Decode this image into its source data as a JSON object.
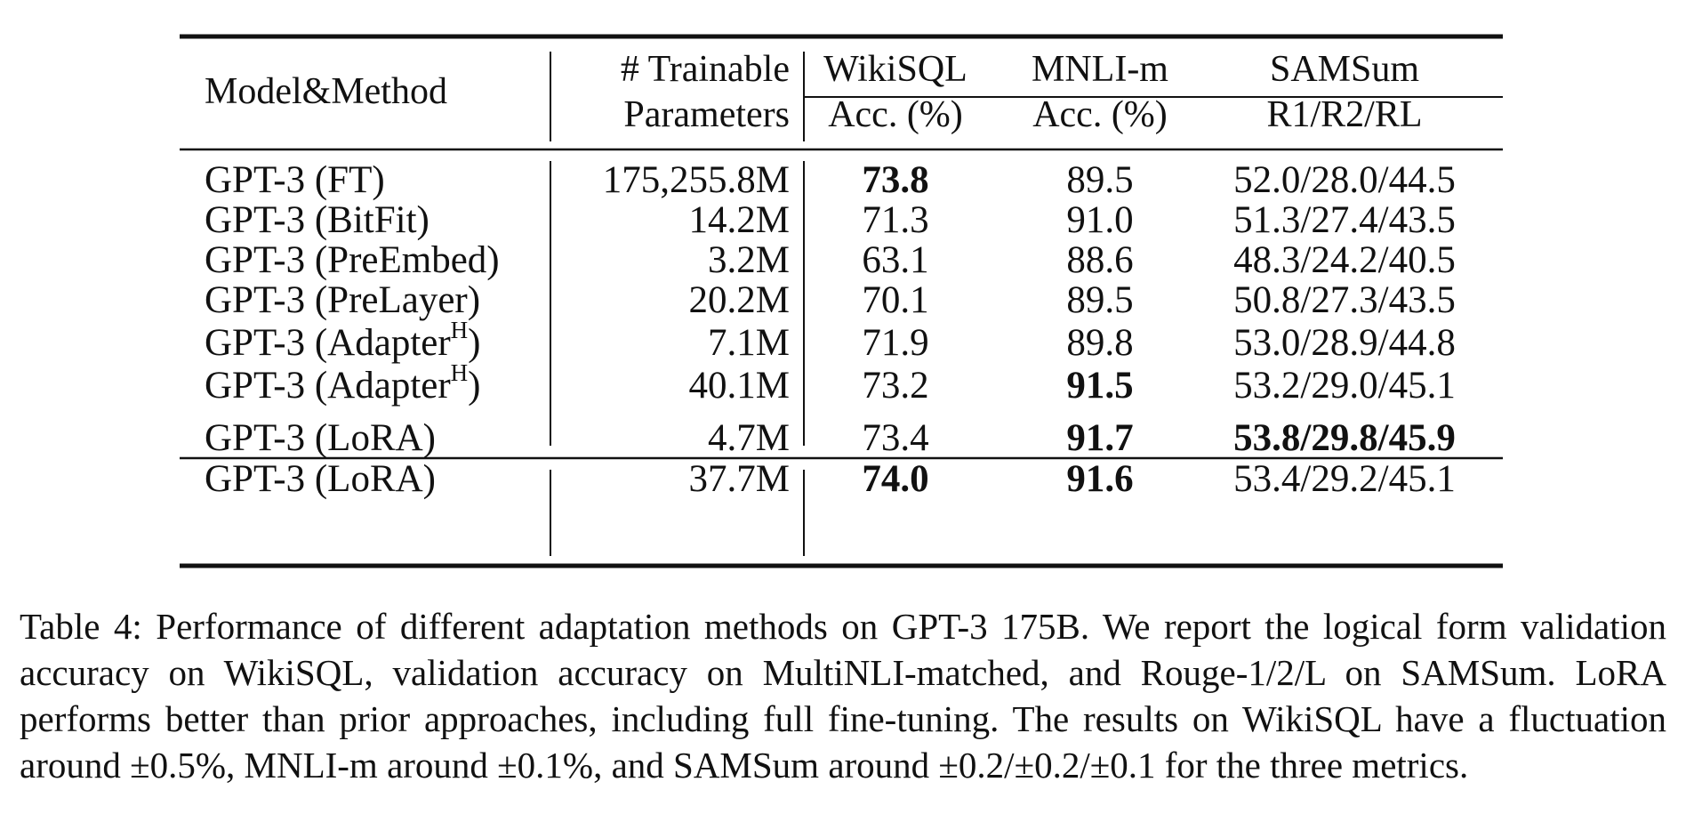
{
  "table": {
    "headers": {
      "model": "Model&Method",
      "params_line1": "# Trainable",
      "params_line2": "Parameters",
      "wikisql_line1": "WikiSQL",
      "wikisql_line2": "Acc. (%)",
      "mnli_line1": "MNLI-m",
      "mnli_line2": "Acc. (%)",
      "samsum_line1": "SAMSum",
      "samsum_line2": "R1/R2/RL"
    },
    "rows": [
      {
        "model": "GPT-3 (FT)",
        "sup": "",
        "params": "175,255.8M",
        "wikisql": "73.8",
        "mnli": "89.5",
        "samsum": "52.0/28.0/44.5",
        "bold_wikisql": true,
        "bold_mnli": false,
        "bold_samsum": false
      },
      {
        "model": "GPT-3 (BitFit)",
        "sup": "",
        "params": "14.2M",
        "wikisql": "71.3",
        "mnli": "91.0",
        "samsum": "51.3/27.4/43.5",
        "bold_wikisql": false,
        "bold_mnli": false,
        "bold_samsum": false
      },
      {
        "model": "GPT-3 (PreEmbed)",
        "sup": "",
        "params": "3.2M",
        "wikisql": "63.1",
        "mnli": "88.6",
        "samsum": "48.3/24.2/40.5",
        "bold_wikisql": false,
        "bold_mnli": false,
        "bold_samsum": false
      },
      {
        "model": "GPT-3 (PreLayer)",
        "sup": "",
        "params": "20.2M",
        "wikisql": "70.1",
        "mnli": "89.5",
        "samsum": "50.8/27.3/43.5",
        "bold_wikisql": false,
        "bold_mnli": false,
        "bold_samsum": false
      },
      {
        "model": "GPT-3 (Adapter",
        "sup": "H",
        "model_tail": ")",
        "params": "7.1M",
        "wikisql": "71.9",
        "mnli": "89.8",
        "samsum": "53.0/28.9/44.8",
        "bold_wikisql": false,
        "bold_mnli": false,
        "bold_samsum": false
      },
      {
        "model": "GPT-3 (Adapter",
        "sup": "H",
        "model_tail": ")",
        "params": "40.1M",
        "wikisql": "73.2",
        "mnli": "91.5",
        "samsum": "53.2/29.0/45.1",
        "bold_wikisql": false,
        "bold_mnli": true,
        "bold_samsum": false
      },
      {
        "model": "GPT-3 (LoRA)",
        "sup": "",
        "params": "4.7M",
        "wikisql": "73.4",
        "mnli": "91.7",
        "samsum": "53.8/29.8/45.9",
        "bold_wikisql": false,
        "bold_mnli": true,
        "bold_samsum": true
      },
      {
        "model": "GPT-3 (LoRA)",
        "sup": "",
        "params": "37.7M",
        "wikisql": "74.0",
        "mnli": "91.6",
        "samsum": "53.4/29.2/45.1",
        "bold_wikisql": true,
        "bold_mnli": true,
        "bold_samsum": false
      }
    ]
  },
  "caption": {
    "label": "Table 4:",
    "text": "Performance of different adaptation methods on GPT-3 175B. We report the logical form validation accuracy on WikiSQL, validation accuracy on MultiNLI-matched, and Rouge-1/2/L on SAMSum. LoRA performs better than prior approaches, including full fine-tuning. The results on WikiSQL have a fluctuation around ±0.5%, MNLI-m around ±0.1%, and SAMSum around ±0.2/±0.2/±0.1 for the three metrics."
  }
}
